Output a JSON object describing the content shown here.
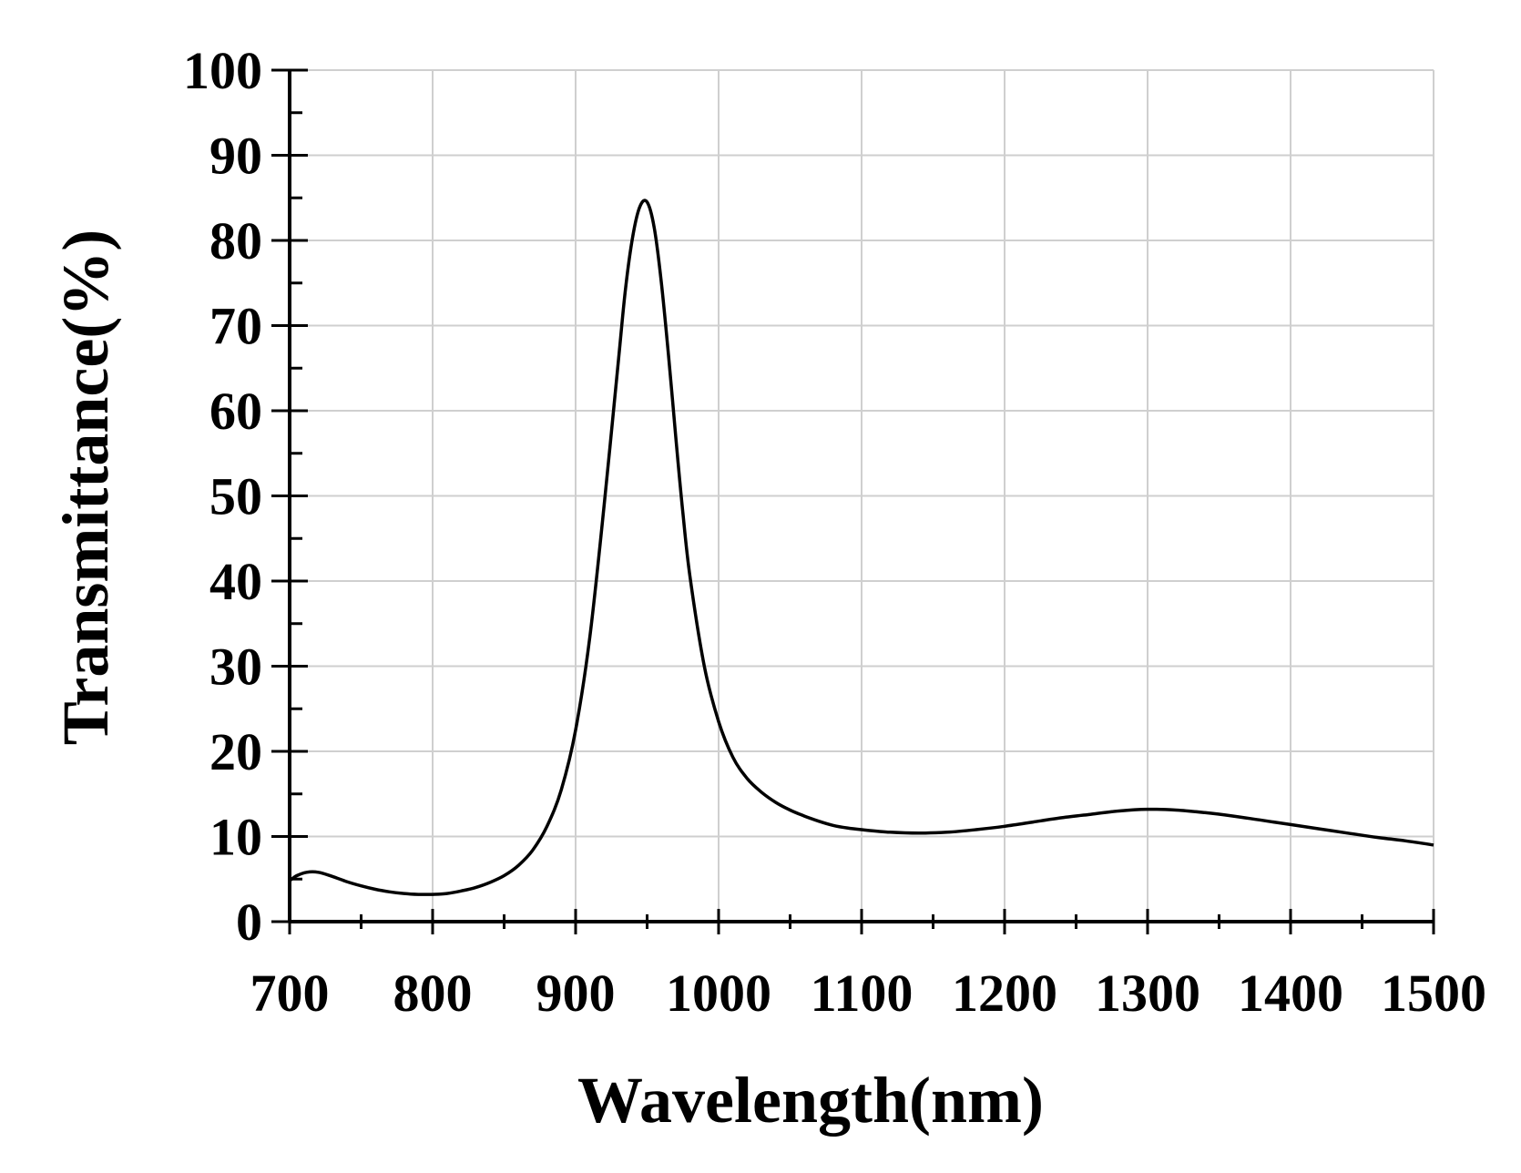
{
  "chart_data": {
    "type": "line",
    "title": "",
    "xlabel": "Wavelength(nm)",
    "ylabel": "Transmittance(%)",
    "xlim": [
      700,
      1500
    ],
    "ylim": [
      0,
      100
    ],
    "xticks": [
      "700",
      "800",
      "900",
      "1000",
      "1100",
      "1200",
      "1300",
      "1400",
      "1500"
    ],
    "yticks": [
      "0",
      "10",
      "20",
      "30",
      "40",
      "50",
      "60",
      "70",
      "80",
      "90",
      "100"
    ],
    "grid": true,
    "colors": {
      "line": "#000000",
      "grid": "#cfcfcf",
      "axis": "#000000"
    },
    "series": [
      {
        "name": "Transmittance",
        "x": [
          700,
          705,
          712,
          720,
          730,
          740,
          750,
          760,
          770,
          780,
          790,
          800,
          810,
          820,
          830,
          840,
          850,
          860,
          870,
          880,
          890,
          900,
          910,
          920,
          930,
          935,
          940,
          945,
          950,
          955,
          960,
          965,
          970,
          975,
          980,
          990,
          1000,
          1010,
          1020,
          1030,
          1040,
          1050,
          1060,
          1070,
          1080,
          1090,
          1100,
          1120,
          1140,
          1160,
          1180,
          1200,
          1220,
          1240,
          1260,
          1280,
          1300,
          1320,
          1340,
          1360,
          1380,
          1400,
          1420,
          1440,
          1460,
          1480,
          1500
        ],
        "y": [
          4.8,
          5.4,
          5.8,
          5.8,
          5.3,
          4.7,
          4.2,
          3.8,
          3.5,
          3.3,
          3.2,
          3.2,
          3.3,
          3.6,
          4.0,
          4.6,
          5.4,
          6.6,
          8.4,
          11.2,
          15.5,
          22.5,
          33.5,
          49.0,
          66.0,
          74.5,
          80.5,
          84.0,
          84.5,
          81.5,
          75.0,
          66.5,
          57.0,
          48.0,
          40.5,
          30.0,
          23.5,
          19.3,
          16.8,
          15.2,
          14.0,
          13.1,
          12.4,
          11.8,
          11.3,
          11.0,
          10.8,
          10.5,
          10.4,
          10.5,
          10.8,
          11.2,
          11.7,
          12.2,
          12.6,
          13.0,
          13.2,
          13.1,
          12.8,
          12.4,
          11.9,
          11.4,
          10.9,
          10.4,
          9.9,
          9.5,
          9.0
        ]
      }
    ]
  }
}
